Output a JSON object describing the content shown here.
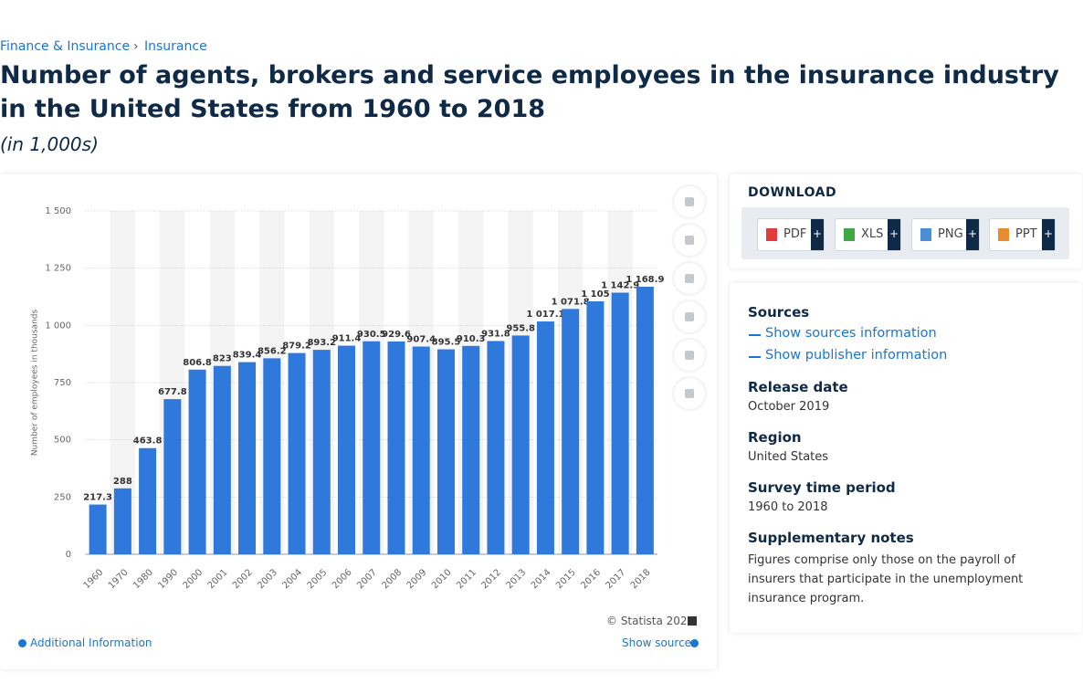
{
  "breadcrumb": {
    "items": [
      "Finance & Insurance",
      "Insurance"
    ],
    "separator": "›"
  },
  "title": "Number of agents, brokers and service employees in the insurance industry in the United States from 1960 to 2018",
  "subtitle": "(in 1,000s)",
  "chart_data": {
    "type": "bar",
    "y_label": "Number of employees in thousands",
    "categories": [
      "1960",
      "1970",
      "1980",
      "1990",
      "2000",
      "2001",
      "2002",
      "2003",
      "2004",
      "2005",
      "2006",
      "2007",
      "2008",
      "2009",
      "2010",
      "2011",
      "2012",
      "2013",
      "2014",
      "2015",
      "2016",
      "2017",
      "2018"
    ],
    "values": [
      217.3,
      288,
      463.8,
      677.8,
      806.8,
      823,
      839.4,
      856.2,
      879.2,
      893.2,
      911.4,
      930.5,
      929.6,
      907.4,
      895.5,
      910.3,
      931.8,
      955.8,
      1017.1,
      1071.8,
      1105,
      1142.9,
      1168.9
    ],
    "value_labels": [
      "217.3",
      "288",
      "463.8",
      "677.8",
      "806.8",
      "823",
      "839.4",
      "856.2",
      "879.2",
      "893.2",
      "911.4",
      "930.5",
      "929.6",
      "907.4",
      "895.5",
      "910.3",
      "931.8",
      "955.8",
      "1 017.1",
      "1 071.8",
      "1 105",
      "1 142.9",
      "1 168.9"
    ],
    "color": "#2f78dc",
    "ylim": [
      0,
      1500
    ],
    "yticks": [
      0,
      250,
      500,
      750,
      {
        "value": 1000,
        "label": "1 000"
      },
      {
        "value": 1250,
        "label": "1 250"
      },
      {
        "value": 1500,
        "label": "1 500"
      }
    ],
    "grid": true
  },
  "chart_footer": {
    "copyright": "© Statista 2020",
    "additional": "Additional Information",
    "show_source": "Show source"
  },
  "download": {
    "title": "DOWNLOAD",
    "buttons": [
      "PDF",
      "XLS",
      "PNG",
      "PPT"
    ],
    "plus": "+"
  },
  "details": {
    "sources_heading": "Sources",
    "links": [
      "Show sources information",
      "Show publisher information"
    ],
    "fields": [
      {
        "label": "Release date",
        "value": "October 2019"
      },
      {
        "label": "Region",
        "value": "United States"
      },
      {
        "label": "Survey time period",
        "value": "1960 to 2018"
      },
      {
        "label": "Supplementary notes",
        "value": "Figures comprise only those on the payroll of insurers that participate in the unemployment insurance program."
      }
    ]
  }
}
